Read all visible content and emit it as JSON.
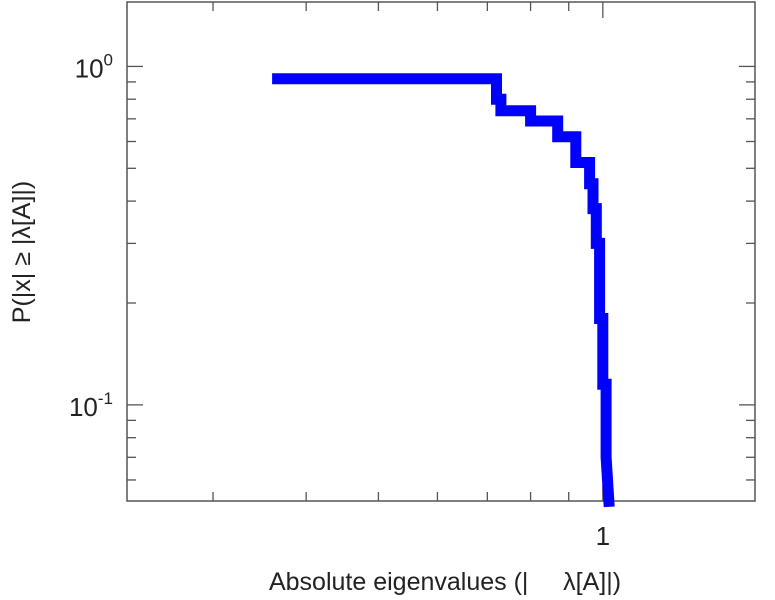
{
  "chart_data": {
    "type": "line",
    "title": "",
    "xlabel": "Absolute eigenvalues (|     λ[A]|)",
    "ylabel": "P(|x|  ≥ |λ[A]|)",
    "x_scale": "log",
    "y_scale": "log",
    "xlim": [
      0.23,
      1.6
    ],
    "ylim": [
      0.052,
      1.55
    ],
    "x_tick_labels": [
      {
        "value": 1,
        "label": "1"
      }
    ],
    "y_tick_labels": [
      {
        "value": 1,
        "base": "10",
        "exp": "0"
      },
      {
        "value": 0.1,
        "base": "10",
        "exp": "-1"
      }
    ],
    "grid": false,
    "line_color": "#0000ff",
    "series": [
      {
        "x": [
          0.36,
          0.72,
          0.72,
          0.73,
          0.73,
          0.8,
          0.8,
          0.87,
          0.87,
          0.92,
          0.92,
          0.96,
          0.96,
          0.97,
          0.97,
          0.98,
          0.98,
          0.99,
          0.99,
          1.0,
          1.0,
          1.01,
          1.01,
          1.02
        ],
        "y": [
          0.92,
          0.92,
          0.8,
          0.8,
          0.74,
          0.74,
          0.69,
          0.69,
          0.62,
          0.62,
          0.52,
          0.52,
          0.45,
          0.45,
          0.38,
          0.38,
          0.3,
          0.3,
          0.18,
          0.18,
          0.115,
          0.115,
          0.07,
          0.05
        ]
      }
    ]
  }
}
